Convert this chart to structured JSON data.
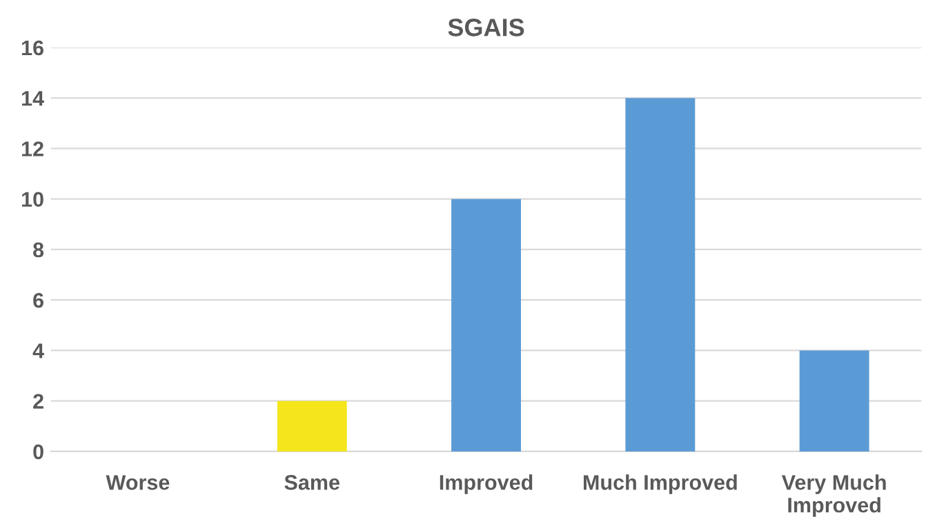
{
  "chart_data": {
    "type": "bar",
    "title": "SGAIS",
    "categories": [
      "Worse",
      "Same",
      "Improved",
      "Much Improved",
      "Very Much\nImproved"
    ],
    "values": [
      0,
      2,
      10,
      14,
      4
    ],
    "colors": [
      "#5b9bd5",
      "#f5e61c",
      "#5b9bd5",
      "#5b9bd5",
      "#5b9bd5"
    ],
    "ylim": [
      0,
      16
    ],
    "yticks": [
      0,
      2,
      4,
      6,
      8,
      10,
      12,
      14,
      16
    ],
    "grid": "y"
  }
}
